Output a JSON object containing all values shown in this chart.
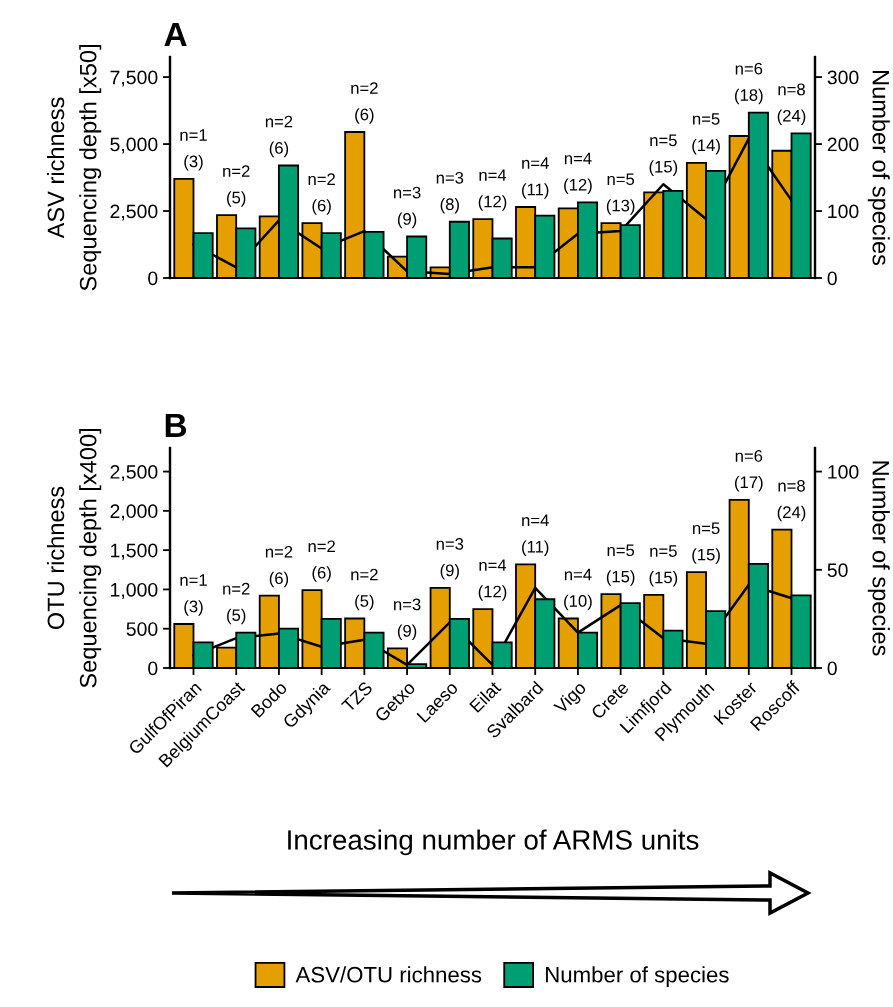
{
  "chart_data": [
    {
      "type": "bar",
      "title": "A",
      "ylabel": "ASV richness\nSequencing depth [x50]",
      "y2label": "Number of species",
      "tick_labels": "y",
      "categories": [
        null,
        null,
        null,
        null,
        null,
        null,
        null,
        null,
        null,
        null,
        null,
        null,
        null,
        null,
        null
      ],
      "series": [
        {
          "color": "#e69f00",
          "values": [
            3700,
            2350,
            2300,
            2050,
            5450,
            800,
            400,
            2200,
            2650,
            2600,
            2050,
            3200,
            4300,
            5300,
            4750
          ]
        },
        {
          "color": "#009e73",
          "axis": "y2",
          "values": [
            67,
            74,
            168,
            67,
            69,
            62,
            84,
            59,
            93,
            113,
            79,
            130,
            160,
            247,
            216
          ]
        },
        {
          "type": "line",
          "color": "#000000",
          "values": [
            1250,
            400,
            2150,
            1100,
            1750,
            250,
            150,
            400,
            400,
            1650,
            1750,
            3500,
            2200,
            5200,
            2900
          ]
        }
      ],
      "ylim": [
        0,
        8250
      ],
      "yticks": [
        0,
        {
          "value": 2500,
          "label": "2,500"
        },
        {
          "value": 5000,
          "label": "5,000"
        },
        {
          "value": 7500,
          "label": "7,500"
        }
      ],
      "y2lim": [
        0,
        330
      ],
      "y2ticks": [
        0,
        100,
        200,
        300
      ],
      "annotations": [
        "n=1\n(3)",
        "n=2\n(5)",
        "n=2\n(6)",
        "n=2\n(6)",
        "n=2\n(6)",
        "n=3\n(9)",
        "n=3\n(8)",
        "n=4\n(12)",
        "n=4\n(11)",
        "n=4\n(12)",
        "n=5\n(13)",
        "n=5\n(15)",
        "n=5\n(14)",
        "n=6\n(18)",
        "n=8\n(24)"
      ]
    },
    {
      "type": "bar",
      "title": "B",
      "ylabel": "OTU richness\nSequencing depth [x400]",
      "y2label": "Number of species",
      "xlabel": "Increasing number of ARMS units",
      "legend": "bottom",
      "categories": [
        "GulfOfPiran",
        "BelgiumCoast",
        "Bodo",
        "Gdynia",
        "TZS",
        "Getxo",
        "Laeso",
        "Eilat",
        "Svalbard",
        "Vigo",
        "Crete",
        "Limfjord",
        "Plymouth",
        "Koster",
        "Roscoff"
      ],
      "series": [
        {
          "name": "ASV/OTU richness",
          "color": "#e69f00",
          "values": [
            560,
            260,
            920,
            990,
            630,
            250,
            1020,
            750,
            1320,
            630,
            940,
            930,
            1220,
            2140,
            1760
          ]
        },
        {
          "name": "Number of species",
          "color": "#009e73",
          "axis": "y2",
          "values": [
            13,
            18,
            20,
            25,
            18,
            2,
            25,
            13,
            35,
            18,
            33,
            19,
            29,
            53,
            37
          ]
        },
        {
          "type": "line",
          "color": "#000000",
          "values": [
            160,
            380,
            440,
            270,
            360,
            40,
            580,
            40,
            1020,
            450,
            800,
            380,
            310,
            1060,
            890
          ]
        }
      ],
      "ylim": [
        0,
        2800
      ],
      "yticks": [
        0,
        500,
        {
          "value": 1000,
          "label": "1,000"
        },
        {
          "value": 1500,
          "label": "1,500"
        },
        {
          "value": 2000,
          "label": "2,000"
        },
        {
          "value": 2500,
          "label": "2,500"
        }
      ],
      "y2lim": [
        0,
        112
      ],
      "y2ticks": [
        0,
        50,
        100
      ],
      "annotations": [
        "n=1\n(3)",
        "n=2\n(5)",
        "n=2\n(6)",
        "n=2\n(6)",
        "n=2\n(5)",
        "n=3\n(9)",
        "n=3\n(9)",
        "n=4\n(12)",
        "n=4\n(11)",
        "n=4\n(10)",
        "n=5\n(15)",
        "n=5\n(15)",
        "n=5\n(15)",
        "n=6\n(17)",
        "n=8\n(24)"
      ]
    }
  ]
}
